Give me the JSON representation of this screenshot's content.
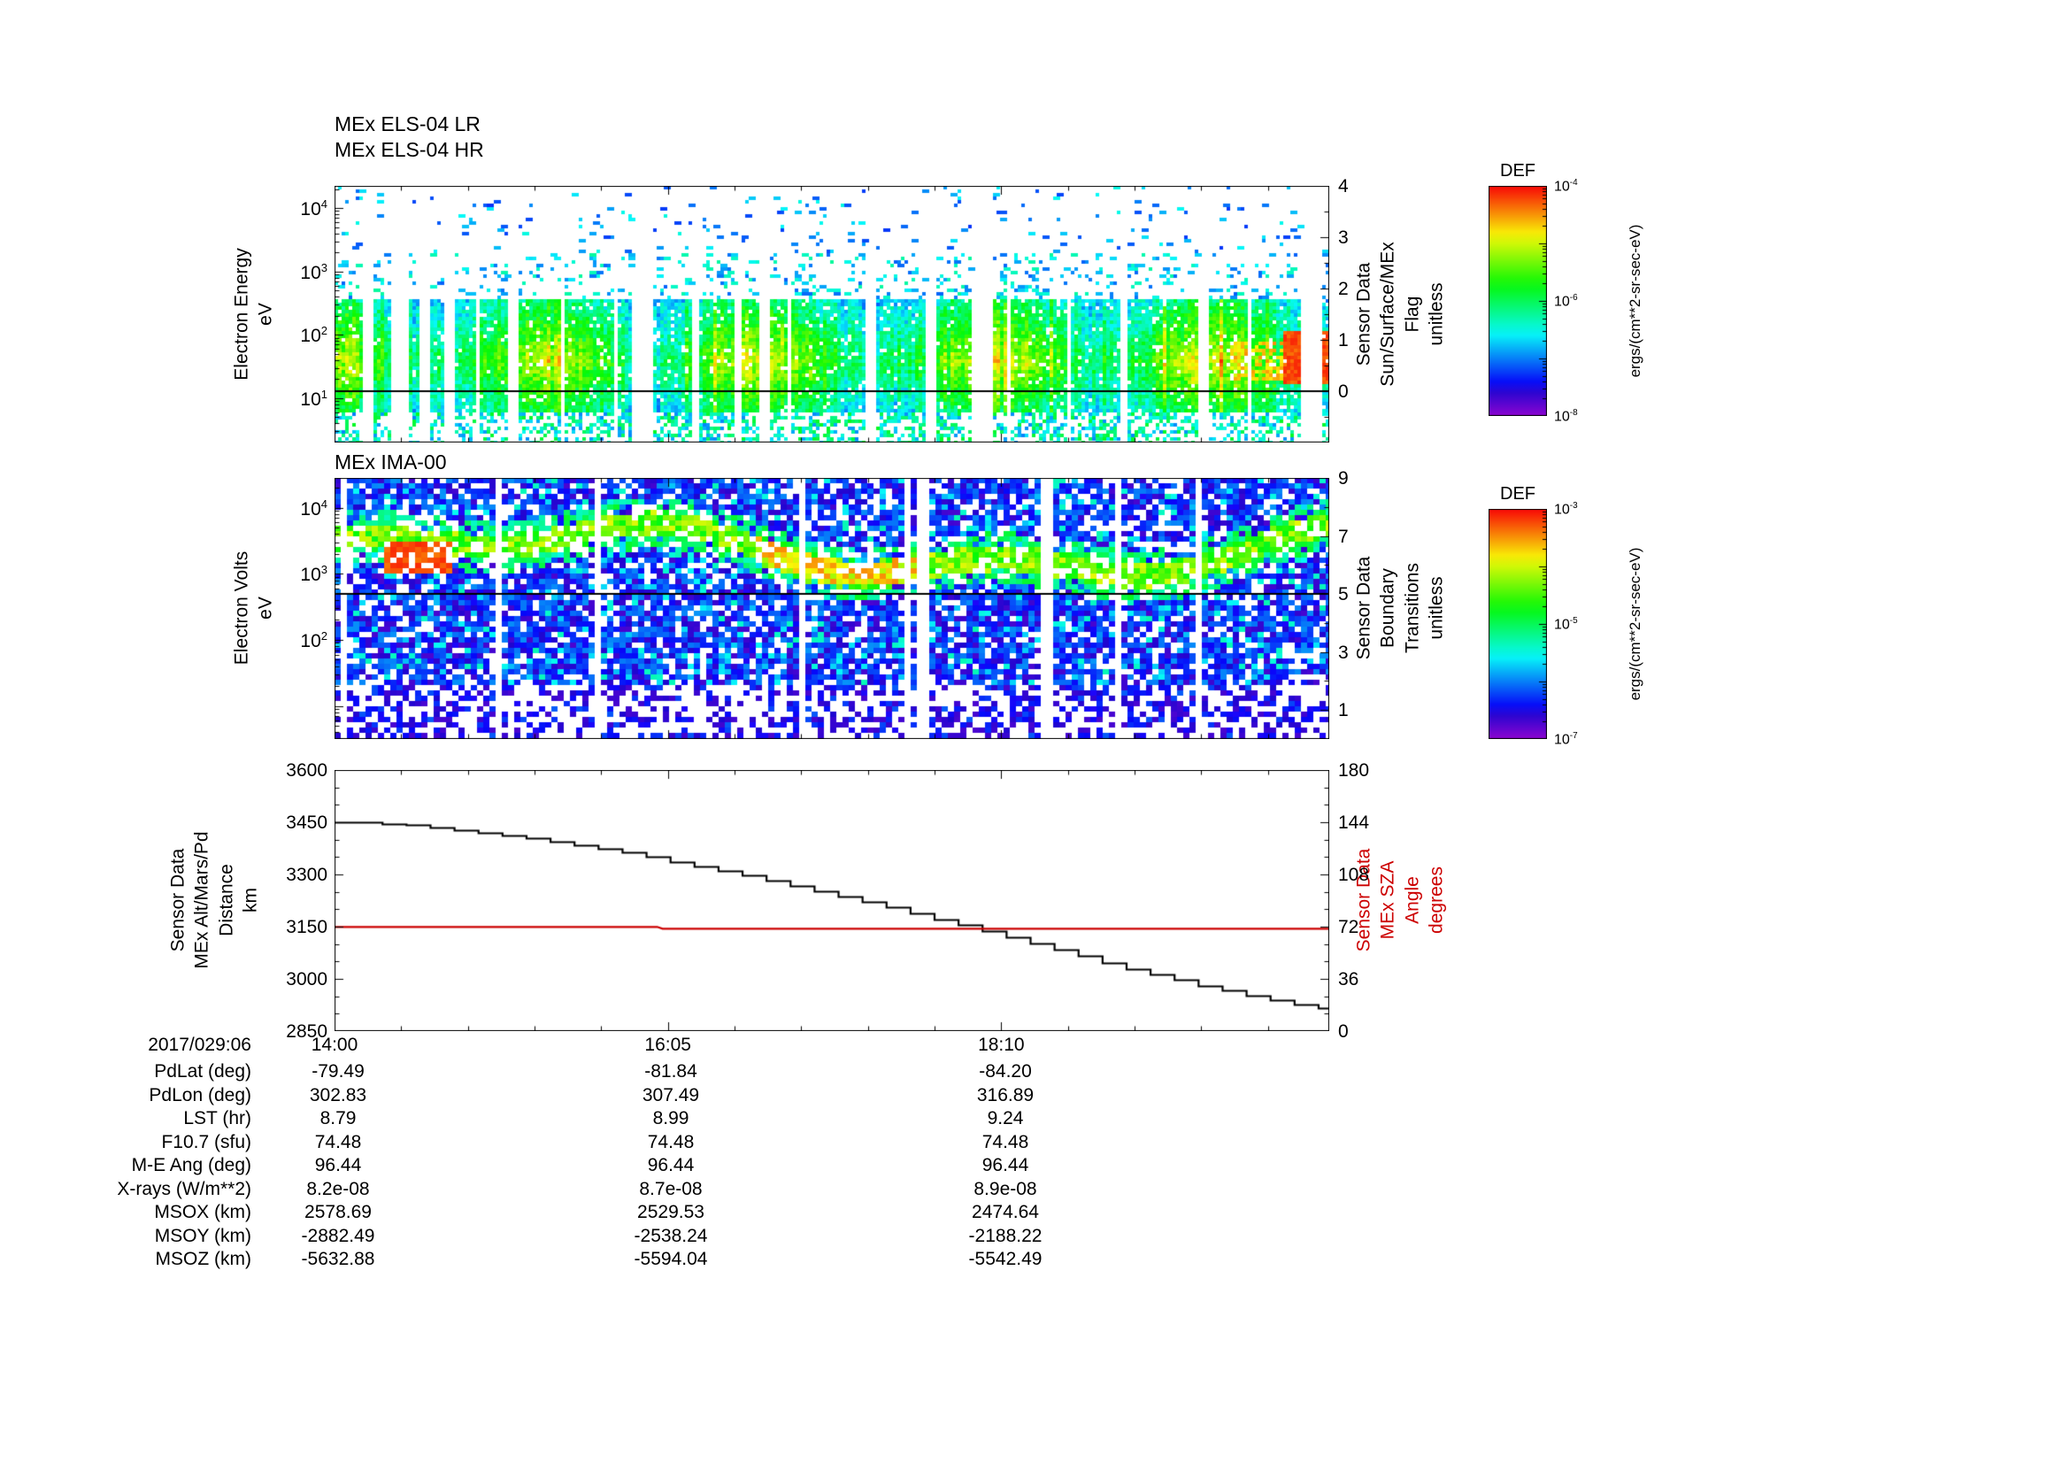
{
  "accent_colors": {
    "sza_red": "#cc0000",
    "frame_black": "#000000"
  },
  "els_panel": {
    "title_lr": "MEx ELS-04 LR",
    "title_hr": "MEx ELS-04 HR",
    "left_label_lines": [
      "Electron Energy",
      "eV"
    ],
    "y_tick_labels": [
      "10^4",
      "10^3",
      "10^2",
      "10^1"
    ],
    "right_label_lines": [
      "Sensor Data",
      "Sun/Surface/MEx",
      "Flag",
      "unitless"
    ],
    "right_tick_labels": [
      "4",
      "3",
      "2",
      "1",
      "0"
    ]
  },
  "ima_panel": {
    "title": "MEx IMA-00",
    "left_label_lines": [
      "Electron Volts",
      "eV"
    ],
    "y_tick_labels": [
      "10^4",
      "10^3",
      "10^2"
    ],
    "right_label_lines": [
      "Sensor Data",
      "Boundary",
      "Transitions",
      "unitless"
    ],
    "right_tick_labels": [
      "9",
      "7",
      "5",
      "3",
      "1"
    ]
  },
  "line_panel": {
    "left_label_lines": [
      "Sensor Data",
      "MEx Alt/Mars/Pd",
      "Distance",
      "km"
    ],
    "left_tick_labels": [
      "3600",
      "3450",
      "3300",
      "3150",
      "3000",
      "2850"
    ],
    "right_label_lines": [
      "Sensor Data",
      "MEx SZA",
      "Angle",
      "degrees"
    ],
    "right_tick_labels": [
      "180",
      "144",
      "108",
      "72",
      "36",
      "0"
    ]
  },
  "xaxis": {
    "tick_labels": [
      "14:00",
      "16:05",
      "18:10"
    ]
  },
  "colorbars": [
    {
      "title": "DEF",
      "tick_labels": [
        "10^-4",
        "10^-6",
        "10^-8"
      ],
      "unit": "ergs/(cm**2-sr-sec-eV)"
    },
    {
      "title": "DEF",
      "tick_labels": [
        "10^-3",
        "10^-5",
        "10^-7"
      ],
      "unit": "ergs/(cm**2-sr-sec-eV)"
    }
  ],
  "table": {
    "date_label": "2017/029:06",
    "rows": [
      {
        "label": "PdLat (deg)",
        "values": [
          "-79.49",
          "-81.84",
          "-84.20"
        ]
      },
      {
        "label": "PdLon (deg)",
        "values": [
          "302.83",
          "307.49",
          "316.89"
        ]
      },
      {
        "label": "LST (hr)",
        "values": [
          "8.79",
          "8.99",
          "9.24"
        ]
      },
      {
        "label": "F10.7 (sfu)",
        "values": [
          "74.48",
          "74.48",
          "74.48"
        ]
      },
      {
        "label": "M-E Ang (deg)",
        "values": [
          "96.44",
          "96.44",
          "96.44"
        ]
      },
      {
        "label": "X-rays (W/m**2)",
        "values": [
          "8.2e-08",
          "8.7e-08",
          "8.9e-08"
        ]
      },
      {
        "label": "MSOX (km)",
        "values": [
          "2578.69",
          "2529.53",
          "2474.64"
        ]
      },
      {
        "label": "MSOY (km)",
        "values": [
          "-2882.49",
          "-2538.24",
          "-2188.22"
        ]
      },
      {
        "label": "MSOZ (km)",
        "values": [
          "-5632.88",
          "-5594.04",
          "-5542.49"
        ]
      }
    ]
  },
  "chart_data": [
    {
      "type": "heatmap",
      "panel": "els",
      "title": "MEx ELS-04 LR / MEx ELS-04 HR",
      "xlabel": "",
      "ylabel": "Electron Energy eV",
      "y_scale": "log",
      "y_tick_values": [
        10,
        100,
        1000,
        10000
      ],
      "x_tick_labels": [
        "14:00",
        "16:05",
        "18:10"
      ],
      "x_start": "2017/029 14:00",
      "x_span_minutes": 373,
      "colorbar": {
        "title": "DEF",
        "unit": "ergs/(cm**2-sr-sec-eV)",
        "log_range": [
          "1e-8",
          "1e-4"
        ]
      },
      "right_axis": {
        "label": "Sensor Data Sun/Surface/MEx Flag unitless",
        "tick_values": [
          0,
          1,
          2,
          3,
          4
        ],
        "line_value": 0
      },
      "visible_features": [
        "dense electron flux band between ~8 and ~300 eV, mostly green-yellow",
        "scattered blue-cyan bursts from 300 eV up to 10 keV",
        "periodic white vertical data gaps",
        "red high-flux patch near end of interval between ~20 and ~100 eV",
        "horizontal black flag line at flag value 0"
      ]
    },
    {
      "type": "heatmap",
      "panel": "ima",
      "title": "MEx IMA-00",
      "xlabel": "",
      "ylabel": "Electron Volts eV",
      "y_scale": "log",
      "y_tick_values": [
        100,
        1000,
        10000
      ],
      "x_tick_labels": [
        "14:00",
        "16:05",
        "18:10"
      ],
      "x_span_minutes": 373,
      "colorbar": {
        "title": "DEF",
        "unit": "ergs/(cm**2-sr-sec-eV)",
        "log_range": [
          "1e-7",
          "1e-3"
        ]
      },
      "right_axis": {
        "label": "Sensor Data Boundary Transitions unitless",
        "tick_values": [
          1,
          3,
          5,
          7,
          9
        ],
        "line_value": 5
      },
      "visible_features": [
        "patchwork of low-flux purple/blue cells across all energies with white gaps",
        "enhanced green-yellow band meandering around 1-8 keV",
        "red-orange blob near 14:20 around 1.5-3 keV",
        "yellow enhancement near 16:30-17:30 in the keV band",
        "horizontal black line near right-axis value 5"
      ]
    },
    {
      "type": "line",
      "panel": "altitude-sza",
      "x_tick_labels": [
        "14:00",
        "16:05",
        "18:10"
      ],
      "x_span_minutes": 373,
      "left_axis": {
        "label": "Sensor Data MEx Alt/Mars/Pd Distance km",
        "range": [
          2850,
          3600
        ],
        "tick_step": 150
      },
      "right_axis": {
        "label": "Sensor Data MEx SZA Angle degrees",
        "range": [
          0,
          180
        ],
        "tick_step": 36
      },
      "series": [
        {
          "name": "MEx Alt/Mars/Pd Distance",
          "axis": "left",
          "color": "#000000",
          "style": "stairstep",
          "x_minutes": [
            0,
            15,
            30,
            45,
            60,
            75,
            90,
            105,
            120,
            135,
            150,
            165,
            180,
            195,
            210,
            225,
            240,
            255,
            270,
            285,
            300,
            315,
            330,
            345,
            360,
            373
          ],
          "values": [
            3450,
            3449,
            3443,
            3432,
            3419,
            3405,
            3390,
            3373,
            3352,
            3330,
            3308,
            3285,
            3260,
            3235,
            3208,
            3180,
            3152,
            3122,
            3092,
            3062,
            3032,
            3004,
            2978,
            2955,
            2933,
            2917
          ]
        },
        {
          "name": "MEx SZA Angle",
          "axis": "right",
          "color": "#cc0000",
          "style": "line",
          "x_minutes": [
            0,
            121,
            123,
            373
          ],
          "values": [
            71.8,
            71.8,
            70.6,
            70.6
          ]
        }
      ]
    }
  ]
}
